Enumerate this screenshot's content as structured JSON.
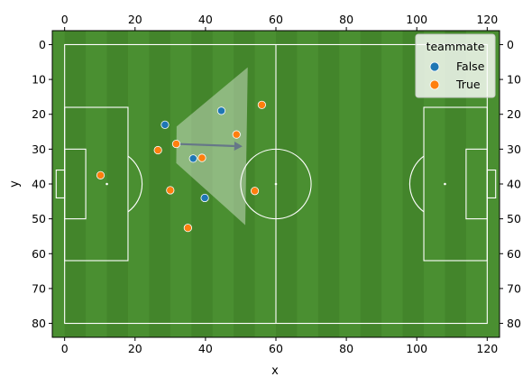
{
  "chart_data": {
    "type": "scatter",
    "title": "",
    "xlabel": "x",
    "ylabel": "y",
    "xlim": [
      -3.5,
      123.5
    ],
    "ylim": [
      84,
      -4
    ],
    "y_inverted": true,
    "grid": false,
    "x_ticks": [
      0,
      20,
      40,
      60,
      80,
      100,
      120
    ],
    "y_ticks": [
      0,
      10,
      20,
      30,
      40,
      50,
      60,
      70,
      80
    ],
    "x_ticks_mirrored_top": true,
    "y_ticks_mirrored_right": true,
    "background": "pitch",
    "pitch": {
      "length": 120,
      "width": 80,
      "grass_color": "#4a8f31",
      "line_color": "#ffffff"
    },
    "legend": {
      "title": "teammate",
      "placement": "top-right"
    },
    "series": [
      {
        "name": "False",
        "color": "#1f77b4",
        "points": [
          {
            "x": 28.5,
            "y": 23.0
          },
          {
            "x": 44.5,
            "y": 19.0
          },
          {
            "x": 36.5,
            "y": 32.7
          },
          {
            "x": 39.8,
            "y": 44.0
          }
        ]
      },
      {
        "name": "True",
        "color": "#ff7f0e",
        "points": [
          {
            "x": 56.0,
            "y": 17.3
          },
          {
            "x": 48.8,
            "y": 25.8
          },
          {
            "x": 31.7,
            "y": 28.5
          },
          {
            "x": 26.5,
            "y": 30.3
          },
          {
            "x": 39.0,
            "y": 32.5
          },
          {
            "x": 10.2,
            "y": 37.5
          },
          {
            "x": 30.0,
            "y": 41.8
          },
          {
            "x": 54.0,
            "y": 42.0
          },
          {
            "x": 35.0,
            "y": 52.6
          }
        ]
      }
    ],
    "annotations": [
      {
        "type": "shaded-polygon",
        "points": [
          [
            31.8,
            23.5
          ],
          [
            52.0,
            6.5
          ],
          [
            51.3,
            51.8
          ],
          [
            31.7,
            34.0
          ]
        ],
        "color": "#ffffff",
        "opacity": 0.38
      },
      {
        "type": "arrow",
        "from": [
          31.7,
          28.5
        ],
        "to": [
          50.5,
          29.2
        ],
        "color": "#667788"
      }
    ]
  }
}
